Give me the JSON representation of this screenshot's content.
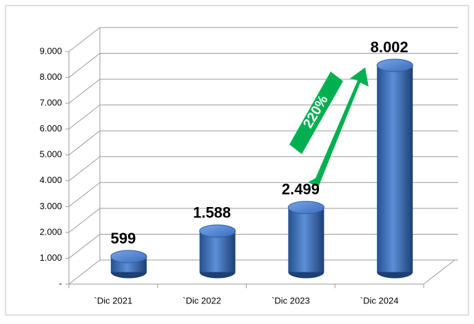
{
  "chart_data": {
    "type": "bar",
    "categories": [
      "`Dic 2021",
      "`Dic 2022",
      "`Dic 2023",
      "`Dic 2024"
    ],
    "values": [
      599,
      1588,
      2499,
      8002
    ],
    "value_labels": [
      "599",
      "1.588",
      "2.499",
      "8.002"
    ],
    "color": "#3a6bbd",
    "ylim": [
      0,
      9000
    ],
    "yticks": [
      {
        "value": 0,
        "label": "-"
      },
      {
        "value": 1000,
        "label": "1.000"
      },
      {
        "value": 2000,
        "label": "2.000"
      },
      {
        "value": 3000,
        "label": "3.000"
      },
      {
        "value": 4000,
        "label": "4.000"
      },
      {
        "value": 5000,
        "label": "5.000"
      },
      {
        "value": 6000,
        "label": "6.000"
      },
      {
        "value": 7000,
        "label": "7.000"
      },
      {
        "value": 8000,
        "label": "8.000"
      },
      {
        "value": 9000,
        "label": "9.000"
      }
    ],
    "grid": true,
    "annotation": "220%"
  }
}
